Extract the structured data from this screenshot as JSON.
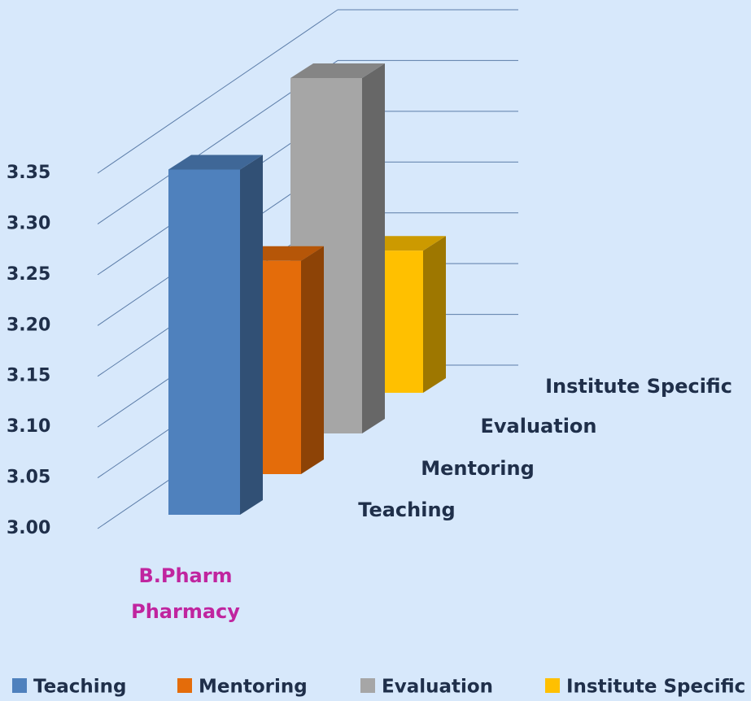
{
  "chart_data": {
    "type": "bar3d",
    "categories": [
      "B.Pharm Pharmacy"
    ],
    "series": [
      {
        "name": "Teaching",
        "color": "#4f81bd",
        "values": [
          3.34
        ]
      },
      {
        "name": "Mentoring",
        "color": "#e46c0a",
        "values": [
          3.21
        ]
      },
      {
        "name": "Evaluation",
        "color": "#a6a6a6",
        "values": [
          3.35
        ]
      },
      {
        "name": "Institute Specific",
        "color": "#ffc000",
        "values": [
          3.14
        ]
      }
    ],
    "ylim": [
      3.0,
      3.35
    ],
    "yticks": [
      {
        "value": 3.0,
        "label": "3.00"
      },
      3.05,
      {
        "value": 3.1,
        "label": "3.10"
      },
      3.15,
      {
        "value": 3.2,
        "label": "3.20"
      },
      3.25,
      {
        "value": 3.3,
        "label": "3.30"
      },
      3.35
    ],
    "grid": true,
    "legend": "bottom"
  }
}
